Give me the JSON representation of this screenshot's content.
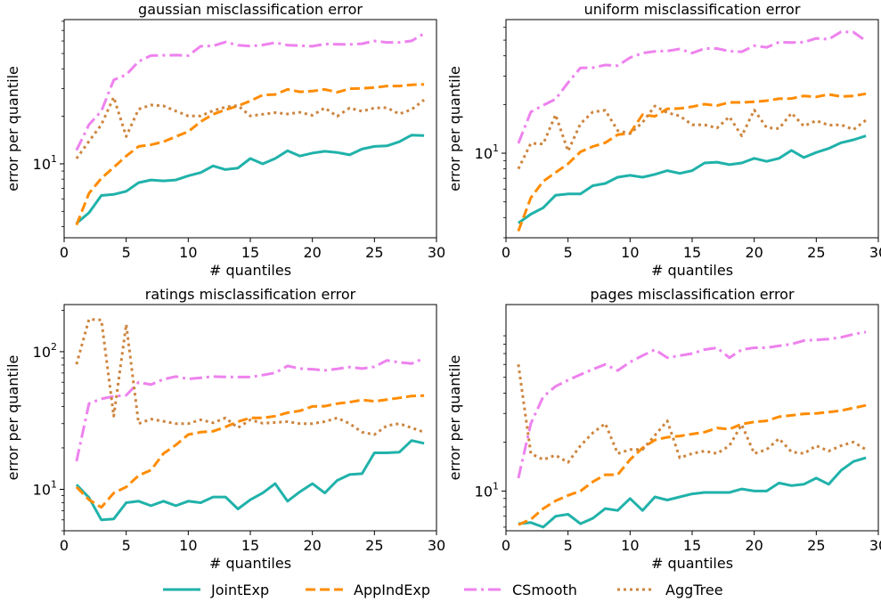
{
  "legend": {
    "placement": "bottom-center",
    "entries": [
      {
        "label": "JointExp",
        "color": "#20b2aa",
        "style": "solid"
      },
      {
        "label": "AppIndExp",
        "color": "#ff8c00",
        "style": "dashed"
      },
      {
        "label": "CSmooth",
        "color": "#ee82ee",
        "style": "dashdot"
      },
      {
        "label": "AggTree",
        "color": "#cd853f",
        "style": "dotted"
      }
    ]
  },
  "chart_data": [
    {
      "type": "line",
      "title": "gaussian misclassification error",
      "xlabel": "# quantiles",
      "ylabel": "error per quantile",
      "yscale": "log",
      "xlim": [
        0,
        30
      ],
      "ylim": [
        3.4,
        82
      ],
      "xticks": [
        "0",
        "5",
        "10",
        "15",
        "20",
        "25",
        "30"
      ],
      "yticks": [
        {
          "value": 10,
          "base": "10",
          "exp": "1"
        }
      ],
      "x": [
        1,
        2,
        3,
        4,
        5,
        6,
        7,
        8,
        9,
        10,
        11,
        12,
        13,
        14,
        15,
        16,
        17,
        18,
        19,
        20,
        21,
        22,
        23,
        24,
        25,
        26,
        27,
        28,
        29
      ],
      "series": [
        {
          "name": "JointExp",
          "values": [
            4.2,
            4.9,
            6.3,
            6.4,
            6.7,
            7.6,
            7.9,
            7.8,
            7.9,
            8.4,
            8.8,
            9.7,
            9.2,
            9.4,
            10.8,
            10.0,
            10.8,
            12.1,
            11.2,
            11.7,
            12.0,
            11.8,
            11.4,
            12.4,
            12.9,
            13.0,
            13.8,
            15.2,
            15.1
          ]
        },
        {
          "name": "AppIndExp",
          "values": [
            4.1,
            6.5,
            8.1,
            9.5,
            11.2,
            12.9,
            13.2,
            13.8,
            14.9,
            16.0,
            18.5,
            20.6,
            22.0,
            23.3,
            25.0,
            27.3,
            27.5,
            29.6,
            28.6,
            28.9,
            29.6,
            28.4,
            29.9,
            30.1,
            30.4,
            31.1,
            31.1,
            31.7,
            31.9
          ]
        },
        {
          "name": "CSmooth",
          "values": [
            12.2,
            17.7,
            21.6,
            34.0,
            36.7,
            44.5,
            48.5,
            48.7,
            48.8,
            48.5,
            55.6,
            55.8,
            59.1,
            56.5,
            55.7,
            56.6,
            58.6,
            56.5,
            56.1,
            55.6,
            57.4,
            57.2,
            57.1,
            57.7,
            60.0,
            58.8,
            58.8,
            60.1,
            66.9
          ]
        },
        {
          "name": "AggTree",
          "values": [
            10.8,
            13.9,
            17.7,
            26.4,
            14.9,
            22.2,
            23.6,
            23.3,
            21.6,
            20.1,
            20.1,
            21.7,
            22.9,
            23.4,
            20.1,
            20.6,
            21.1,
            20.7,
            21.2,
            20.3,
            22.6,
            20.0,
            22.6,
            21.5,
            22.6,
            22.7,
            20.7,
            22.1,
            25.4
          ]
        }
      ]
    },
    {
      "type": "line",
      "title": "uniform misclassification error",
      "xlabel": "# quantiles",
      "ylabel": "error per quantile",
      "yscale": "log",
      "xlim": [
        0,
        30
      ],
      "ylim": [
        3.0,
        67
      ],
      "xticks": [
        "0",
        "5",
        "10",
        "15",
        "20",
        "25",
        "30"
      ],
      "yticks": [
        {
          "value": 10,
          "base": "10",
          "exp": "1"
        }
      ],
      "x": [
        1,
        2,
        3,
        4,
        5,
        6,
        7,
        8,
        9,
        10,
        11,
        12,
        13,
        14,
        15,
        16,
        17,
        18,
        19,
        20,
        21,
        22,
        23,
        24,
        25,
        26,
        27,
        28,
        29
      ],
      "series": [
        {
          "name": "JointExp",
          "values": [
            3.7,
            4.2,
            4.6,
            5.5,
            5.6,
            5.6,
            6.3,
            6.5,
            7.1,
            7.3,
            7.1,
            7.4,
            7.8,
            7.5,
            7.8,
            8.7,
            8.8,
            8.5,
            8.7,
            9.3,
            8.9,
            9.3,
            10.4,
            9.4,
            10.1,
            10.7,
            11.6,
            12.1,
            12.8
          ]
        },
        {
          "name": "AppIndExp",
          "values": [
            3.3,
            5.3,
            6.7,
            7.6,
            8.6,
            10.2,
            11.0,
            11.6,
            13.0,
            13.3,
            17.3,
            16.9,
            18.8,
            18.9,
            19.4,
            20.1,
            19.7,
            20.6,
            20.6,
            20.8,
            21.1,
            21.7,
            21.8,
            22.6,
            22.3,
            23.1,
            22.4,
            22.6,
            23.3
          ]
        },
        {
          "name": "CSmooth",
          "values": [
            11.5,
            18.0,
            19.8,
            21.6,
            27.3,
            33.7,
            33.8,
            35.1,
            34.8,
            39.0,
            41.6,
            42.6,
            42.8,
            44.1,
            41.6,
            44.4,
            44.4,
            42.7,
            42.4,
            46.2,
            45.1,
            48.6,
            48.3,
            48.6,
            51.3,
            50.6,
            56.3,
            56.0,
            49.4
          ]
        },
        {
          "name": "AggTree",
          "values": [
            8.0,
            11.5,
            11.4,
            17.3,
            10.3,
            15.2,
            18.0,
            18.4,
            13.8,
            13.2,
            15.5,
            19.6,
            17.8,
            17.0,
            15.0,
            15.0,
            14.3,
            16.8,
            12.8,
            18.5,
            14.4,
            14.2,
            17.7,
            14.7,
            15.9,
            14.9,
            15.0,
            14.0,
            16.0
          ]
        }
      ]
    },
    {
      "type": "line",
      "title": "ratings misclassification error",
      "xlabel": "# quantiles",
      "ylabel": "error per quantile",
      "yscale": "log",
      "xlim": [
        0,
        30
      ],
      "ylim": [
        5.0,
        220
      ],
      "xticks": [
        "0",
        "5",
        "10",
        "15",
        "20",
        "25",
        "30"
      ],
      "yticks": [
        {
          "value": 10,
          "base": "10",
          "exp": "1"
        },
        {
          "value": 100,
          "base": "10",
          "exp": "2"
        }
      ],
      "x": [
        1,
        2,
        3,
        4,
        5,
        6,
        7,
        8,
        9,
        10,
        11,
        12,
        13,
        14,
        15,
        16,
        17,
        18,
        19,
        20,
        21,
        22,
        23,
        24,
        25,
        26,
        27,
        28,
        29
      ],
      "series": [
        {
          "name": "JointExp",
          "values": [
            10.8,
            8.7,
            6.0,
            6.1,
            8.0,
            8.2,
            7.6,
            8.2,
            7.6,
            8.2,
            8.0,
            8.8,
            8.8,
            7.2,
            8.4,
            9.4,
            11.0,
            8.2,
            9.6,
            11.0,
            9.4,
            11.6,
            12.8,
            13.0,
            18.4,
            18.4,
            18.6,
            22.6,
            21.6
          ]
        },
        {
          "name": "AppIndExp",
          "values": [
            10.4,
            8.4,
            7.4,
            9.4,
            10.4,
            12.6,
            13.8,
            18.2,
            21.0,
            25.0,
            26.0,
            26.4,
            28.4,
            31.0,
            33.0,
            33.0,
            34.0,
            36.0,
            37.2,
            40.0,
            40.2,
            42.0,
            43.0,
            44.6,
            43.6,
            44.8,
            46.2,
            47.6,
            48.0
          ]
        },
        {
          "name": "CSmooth",
          "values": [
            16.0,
            42.0,
            45.4,
            47.4,
            48.2,
            60.0,
            57.6,
            63.0,
            66.0,
            63.4,
            64.6,
            66.0,
            65.6,
            65.4,
            65.4,
            67.6,
            70.2,
            78.8,
            75.4,
            74.6,
            73.2,
            75.0,
            77.4,
            75.4,
            77.6,
            86.4,
            83.6,
            82.0,
            89.6
          ]
        },
        {
          "name": "AggTree",
          "values": [
            81.0,
            172.0,
            170.0,
            34.0,
            158.0,
            30.0,
            32.4,
            31.2,
            30.0,
            30.0,
            32.0,
            30.4,
            33.0,
            28.0,
            32.0,
            30.2,
            30.6,
            31.0,
            30.0,
            30.0,
            31.0,
            33.0,
            30.0,
            26.0,
            25.0,
            29.0,
            30.0,
            28.0,
            26.0
          ]
        }
      ]
    },
    {
      "type": "line",
      "title": "pages misclassification error",
      "xlabel": "# quantiles",
      "ylabel": "error per quantile",
      "yscale": "log",
      "xlim": [
        0,
        30
      ],
      "ylim": [
        5.7,
        140
      ],
      "xticks": [
        "0",
        "5",
        "10",
        "15",
        "20",
        "25",
        "30"
      ],
      "yticks": [
        {
          "value": 10,
          "base": "10",
          "exp": "1"
        }
      ],
      "x": [
        1,
        2,
        3,
        4,
        5,
        6,
        7,
        8,
        9,
        10,
        11,
        12,
        13,
        14,
        15,
        16,
        17,
        18,
        19,
        20,
        21,
        22,
        23,
        24,
        25,
        26,
        27,
        28,
        29
      ],
      "series": [
        {
          "name": "JointExp",
          "values": [
            6.3,
            6.4,
            6.0,
            7.0,
            7.2,
            6.3,
            6.8,
            7.8,
            7.6,
            9.0,
            7.6,
            9.2,
            8.8,
            9.2,
            9.6,
            9.8,
            9.8,
            9.8,
            10.3,
            10.0,
            10.0,
            11.2,
            10.8,
            11.0,
            12.0,
            11.0,
            13.4,
            15.2,
            16.0
          ]
        },
        {
          "name": "AppIndExp",
          "values": [
            6.2,
            6.7,
            7.8,
            8.7,
            9.4,
            10.0,
            11.4,
            12.6,
            12.6,
            15.6,
            18.4,
            20.6,
            21.4,
            21.8,
            22.4,
            23.0,
            24.4,
            24.0,
            25.8,
            26.6,
            27.0,
            28.6,
            29.2,
            29.8,
            30.0,
            30.6,
            31.2,
            32.4,
            33.6
          ]
        },
        {
          "name": "CSmooth",
          "values": [
            12.0,
            26.0,
            38.0,
            44.0,
            48.0,
            52.0,
            56.0,
            60.0,
            55.0,
            62.0,
            68.0,
            74.0,
            66.0,
            68.0,
            70.0,
            74.0,
            76.0,
            66.0,
            74.0,
            76.0,
            76.0,
            78.0,
            80.0,
            84.0,
            85.0,
            86.0,
            88.0,
            92.0,
            95.0
          ]
        },
        {
          "name": "AggTree",
          "values": [
            60.0,
            17.0,
            15.6,
            16.6,
            15.0,
            19.0,
            22.8,
            26.0,
            17.0,
            18.0,
            18.0,
            22.0,
            27.0,
            16.0,
            17.0,
            17.6,
            17.0,
            19.0,
            25.6,
            17.0,
            18.0,
            21.0,
            17.4,
            17.0,
            19.0,
            17.6,
            19.0,
            20.0,
            18.0
          ]
        }
      ]
    }
  ]
}
